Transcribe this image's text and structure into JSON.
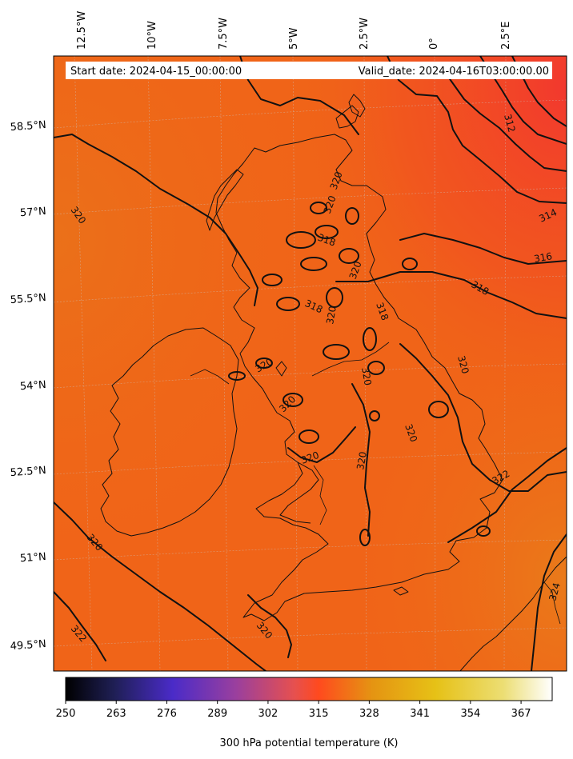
{
  "header": {
    "start_date": "Start date: 2024-04-15_00:00:00",
    "valid_date": "Valid_date: 2024-04-16T03:00:00.00"
  },
  "axes": {
    "lon_labels": [
      "12.5°W",
      "10°W",
      "7.5°W",
      "5°W",
      "2.5°W",
      "0°",
      "2.5°E"
    ],
    "lat_labels": [
      "58.5°N",
      "57°N",
      "55.5°N",
      "54°N",
      "52.5°N",
      "51°N",
      "49.5°N"
    ]
  },
  "contour_labels": [
    "320",
    "320",
    "320",
    "320",
    "320",
    "320",
    "320",
    "320",
    "320",
    "320",
    "320",
    "320",
    "320",
    "320",
    "318",
    "318",
    "318",
    "318",
    "316",
    "314",
    "312",
    "322",
    "322",
    "324"
  ],
  "colorbar": {
    "label": "300 hPa potential temperature (K)",
    "ticks": [
      "250",
      "263",
      "276",
      "289",
      "302",
      "315",
      "328",
      "341",
      "354",
      "367"
    ],
    "range": [
      250,
      375
    ],
    "colormap": "CMRmap",
    "stops": [
      "#000000",
      "#2a2a6e",
      "#4a2bc8",
      "#9a3f9e",
      "#e6504f",
      "#ff4a1e",
      "#e59412",
      "#e6c116",
      "#ecde74",
      "#ffffff"
    ]
  },
  "field": {
    "variable": "300 hPa potential temperature",
    "units": "K",
    "dominant_value": 320,
    "contour_levels": [
      312,
      314,
      316,
      318,
      320,
      322,
      324
    ]
  },
  "colors": {
    "field_base": "#f06418",
    "field_cold": "#f2402a",
    "field_warm": "#e8751a",
    "contour": "#111111"
  }
}
